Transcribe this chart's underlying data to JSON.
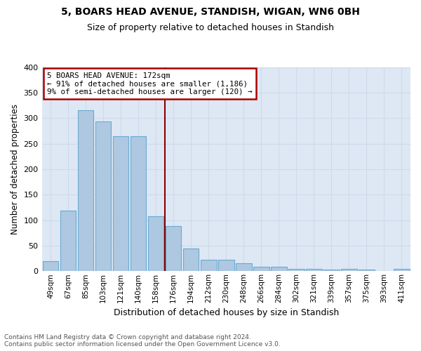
{
  "title": "5, BOARS HEAD AVENUE, STANDISH, WIGAN, WN6 0BH",
  "subtitle": "Size of property relative to detached houses in Standish",
  "xlabel": "Distribution of detached houses by size in Standish",
  "ylabel": "Number of detached properties",
  "categories": [
    "49sqm",
    "67sqm",
    "85sqm",
    "103sqm",
    "121sqm",
    "140sqm",
    "158sqm",
    "176sqm",
    "194sqm",
    "212sqm",
    "230sqm",
    "248sqm",
    "266sqm",
    "284sqm",
    "302sqm",
    "321sqm",
    "339sqm",
    "357sqm",
    "375sqm",
    "393sqm",
    "411sqm"
  ],
  "values": [
    20,
    118,
    315,
    293,
    265,
    265,
    108,
    88,
    44,
    22,
    22,
    15,
    8,
    8,
    5,
    5,
    3,
    5,
    3,
    1,
    5
  ],
  "bar_color": "#adc8e0",
  "bar_edge_color": "#6aaad4",
  "grid_color": "#ccdaea",
  "background_color": "#dde8f4",
  "vline_color": "#8b0000",
  "annotation_title": "5 BOARS HEAD AVENUE: 172sqm",
  "annotation_line1": "← 91% of detached houses are smaller (1,186)",
  "annotation_line2": "9% of semi-detached houses are larger (120) →",
  "annotation_box_color": "#aa0000",
  "ylim": [
    0,
    400
  ],
  "yticks": [
    0,
    50,
    100,
    150,
    200,
    250,
    300,
    350,
    400
  ],
  "footer_line1": "Contains HM Land Registry data © Crown copyright and database right 2024.",
  "footer_line2": "Contains public sector information licensed under the Open Government Licence v3.0."
}
